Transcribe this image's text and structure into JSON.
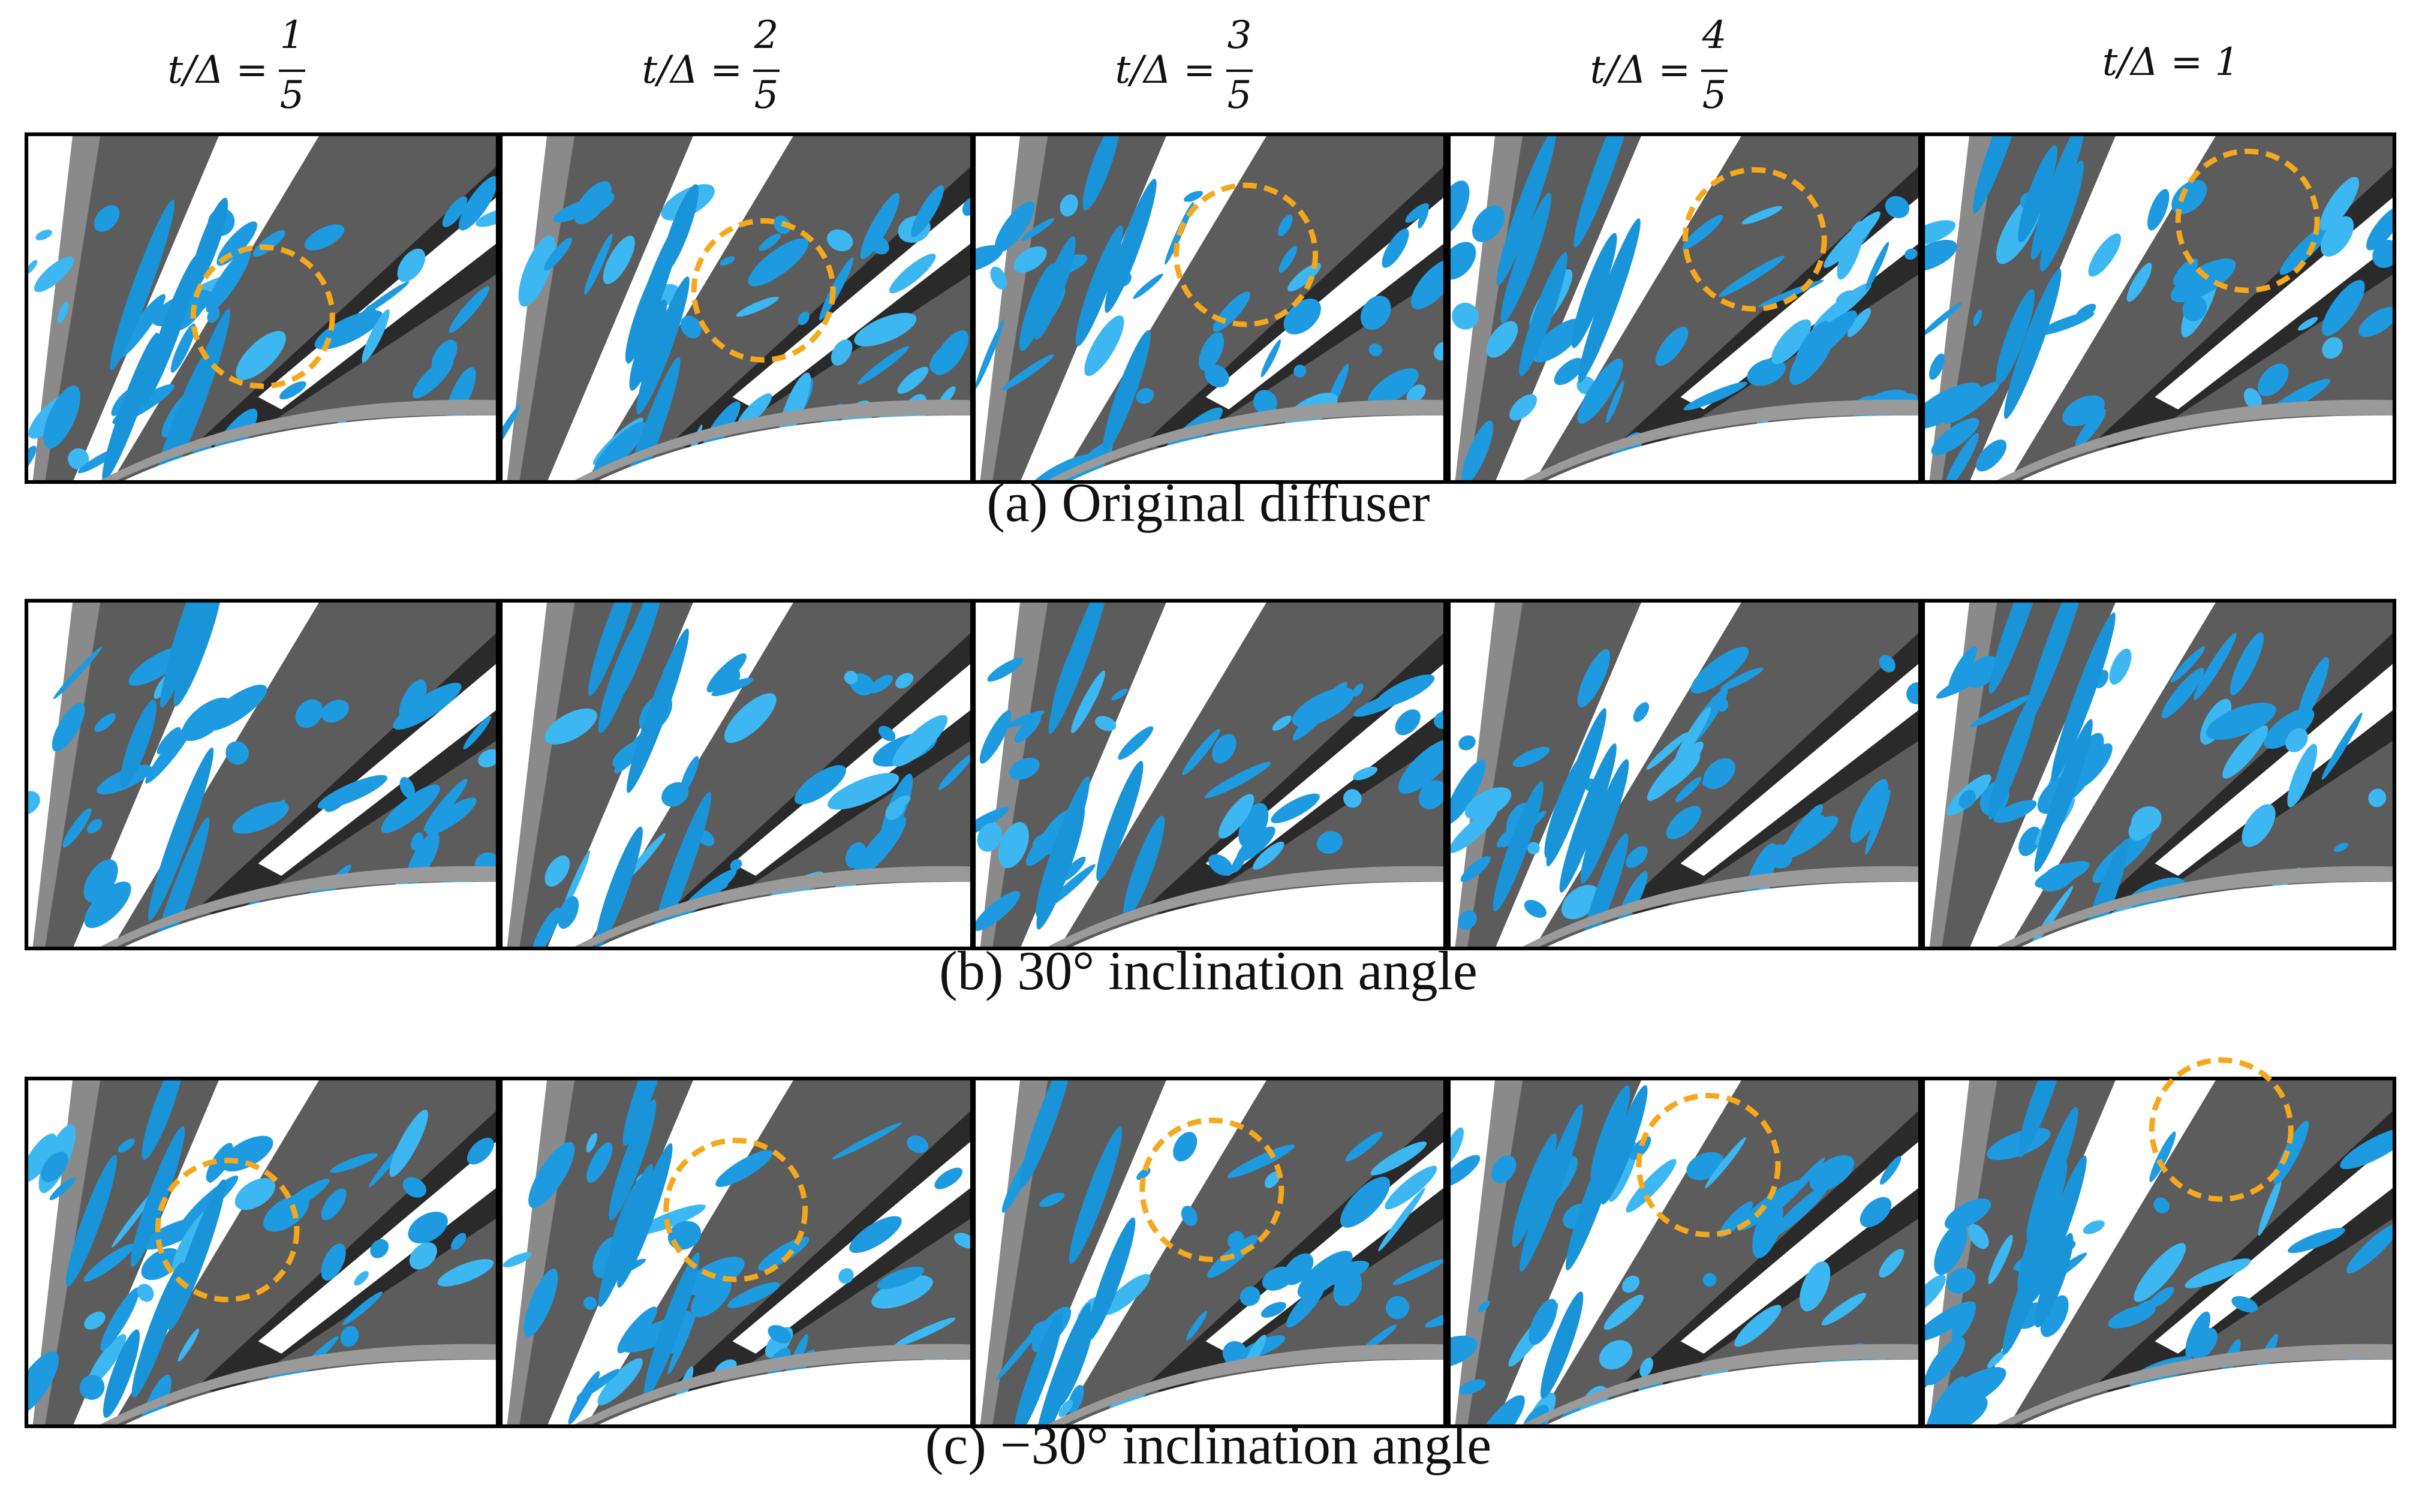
{
  "header": {
    "columns": [
      {
        "prefix": "t/Δ =",
        "numerator": "1",
        "denominator": "5"
      },
      {
        "prefix": "t/Δ =",
        "numerator": "2",
        "denominator": "5"
      },
      {
        "prefix": "t/Δ =",
        "numerator": "3",
        "denominator": "5"
      },
      {
        "prefix": "t/Δ =",
        "numerator": "4",
        "denominator": "5"
      },
      {
        "prefix": "t/Δ = 1"
      }
    ]
  },
  "rows": [
    {
      "caption": "(a) Original diffuser"
    },
    {
      "caption": "(b) 30° inclination angle"
    },
    {
      "caption": "(c) −30° inclination angle"
    }
  ]
}
